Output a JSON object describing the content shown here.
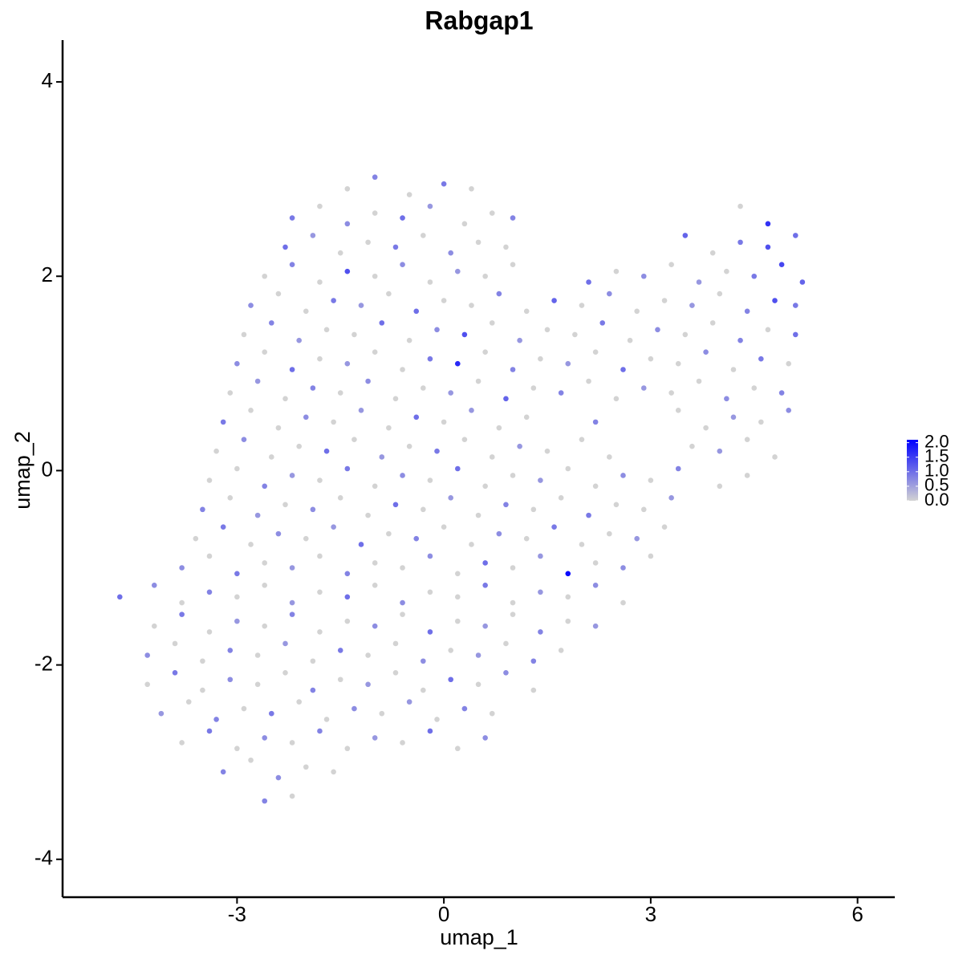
{
  "chart_data": {
    "type": "scatter",
    "title": "Rabgap1",
    "x_label": "umap_1",
    "y_label": "umap_2",
    "xlim": [
      -5.53,
      6.54
    ],
    "ylim": [
      -4.39,
      4.43
    ],
    "xticks": [
      -3,
      0,
      3,
      6
    ],
    "yticks": [
      -4,
      -2,
      0,
      2,
      4
    ],
    "color_low": "#d3d3d3",
    "color_high": "#0000ff",
    "color_lim": [
      0,
      2.1
    ],
    "color_ticks": [
      {
        "value": 2,
        "label": "2.0"
      },
      {
        "value": 1.5,
        "label": "1.5"
      },
      {
        "value": 1,
        "label": "1.0"
      },
      {
        "value": 0.5,
        "label": "0.5"
      },
      {
        "value": 0,
        "label": "0.0"
      }
    ],
    "x": [
      -1.4,
      -1.0,
      -0.5,
      0.0,
      0.4,
      -2.2,
      -1.8,
      -1.4,
      -1.0,
      -0.6,
      -0.2,
      0.3,
      0.7,
      1.0,
      4.3,
      4.7,
      -2.3,
      -1.9,
      -1.5,
      -1.1,
      -0.7,
      -0.3,
      0.1,
      0.5,
      0.9,
      3.5,
      3.9,
      4.3,
      4.7,
      5.1,
      -2.6,
      -2.2,
      -1.8,
      -1.4,
      -1.0,
      -0.6,
      -0.2,
      0.2,
      0.6,
      1.0,
      2.1,
      2.5,
      2.9,
      3.3,
      3.7,
      4.1,
      4.5,
      4.9,
      5.2,
      -2.8,
      -2.4,
      -2.0,
      -1.6,
      -1.2,
      -0.8,
      -0.4,
      0.0,
      0.4,
      0.8,
      1.2,
      1.6,
      2.0,
      2.4,
      2.8,
      3.2,
      3.6,
      4.0,
      4.4,
      4.8,
      5.1,
      -2.9,
      -2.5,
      -2.1,
      -1.7,
      -1.3,
      -0.9,
      -0.5,
      -0.1,
      0.3,
      0.7,
      1.1,
      1.5,
      1.9,
      2.3,
      2.7,
      3.1,
      3.5,
      3.9,
      4.3,
      4.7,
      5.1,
      -3.0,
      -2.6,
      -2.2,
      -1.8,
      -1.4,
      -1.0,
      -0.6,
      -0.2,
      0.2,
      0.6,
      1.0,
      1.4,
      1.8,
      2.2,
      2.6,
      3.0,
      3.4,
      3.8,
      4.2,
      4.6,
      5.0,
      -3.1,
      -2.7,
      -2.3,
      -1.9,
      -1.5,
      -1.1,
      -0.7,
      -0.3,
      0.1,
      0.5,
      0.9,
      1.3,
      1.7,
      2.1,
      2.5,
      2.9,
      3.3,
      3.7,
      4.1,
      4.5,
      4.9,
      -3.2,
      -2.8,
      -2.4,
      -2.0,
      -1.6,
      -1.2,
      -0.8,
      -0.4,
      0.0,
      0.4,
      0.8,
      1.2,
      2.2,
      3.4,
      3.8,
      4.2,
      4.6,
      5.0,
      -3.3,
      -2.9,
      -2.5,
      -2.1,
      -1.7,
      -1.3,
      -0.9,
      -0.5,
      -0.1,
      0.3,
      0.7,
      1.1,
      1.5,
      2.0,
      2.4,
      3.6,
      4.0,
      4.4,
      4.8,
      -3.4,
      -3.0,
      -2.6,
      -2.2,
      -1.8,
      -1.4,
      -1.0,
      -0.6,
      -0.2,
      0.2,
      0.6,
      1.0,
      1.4,
      1.8,
      2.2,
      2.6,
      3.0,
      3.4,
      4.0,
      4.4,
      -3.5,
      -3.1,
      -2.7,
      -2.3,
      -1.9,
      -1.5,
      -1.1,
      -0.7,
      -0.3,
      0.1,
      0.5,
      0.9,
      1.3,
      1.7,
      2.1,
      2.5,
      2.9,
      3.3,
      -3.6,
      -3.2,
      -2.8,
      -2.4,
      -2.0,
      -1.6,
      -1.2,
      -0.8,
      -0.4,
      0.0,
      0.4,
      0.8,
      1.2,
      1.6,
      2.0,
      2.4,
      2.8,
      3.2,
      -3.8,
      -3.4,
      -3.0,
      -2.6,
      -2.2,
      -1.8,
      -1.4,
      -1.0,
      -0.6,
      -0.2,
      0.2,
      0.6,
      1.0,
      1.4,
      1.8,
      2.2,
      2.6,
      3.0,
      -4.7,
      -4.2,
      -3.8,
      -3.4,
      -3.0,
      -2.6,
      -2.2,
      -1.8,
      -1.4,
      -1.0,
      -0.6,
      -0.2,
      0.2,
      0.6,
      1.0,
      1.4,
      1.8,
      2.2,
      2.6,
      -4.2,
      -3.8,
      -3.4,
      -3.0,
      -2.6,
      -2.2,
      -1.8,
      -1.4,
      -1.0,
      -0.6,
      -0.2,
      0.2,
      0.6,
      1.0,
      1.4,
      1.8,
      2.2,
      -4.3,
      -3.9,
      -3.5,
      -3.1,
      -2.7,
      -2.3,
      -1.9,
      -1.5,
      -1.1,
      -0.7,
      -0.3,
      0.1,
      0.5,
      0.9,
      1.3,
      1.7,
      -4.3,
      -3.9,
      -3.5,
      -3.1,
      -2.7,
      -2.3,
      -1.9,
      -1.5,
      -1.1,
      -0.7,
      -0.3,
      0.1,
      0.5,
      0.9,
      1.3,
      -4.1,
      -3.7,
      -3.3,
      -2.9,
      -2.5,
      -2.1,
      -1.7,
      -1.3,
      -0.9,
      -0.5,
      -0.1,
      0.3,
      0.7,
      -3.8,
      -3.4,
      -3.0,
      -2.6,
      -2.2,
      -1.8,
      -1.4,
      -1.0,
      -0.6,
      -0.2,
      0.2,
      0.6,
      -3.2,
      -2.8,
      -2.4,
      -2.0,
      -1.6,
      -2.6,
      -2.2
    ],
    "y": [
      2.9,
      3.02,
      2.84,
      2.95,
      2.9,
      2.6,
      2.72,
      2.54,
      2.65,
      2.6,
      2.72,
      2.54,
      2.65,
      2.6,
      2.72,
      2.54,
      2.3,
      2.42,
      2.24,
      2.35,
      2.3,
      2.42,
      2.24,
      2.35,
      2.3,
      2.42,
      2.24,
      2.35,
      2.3,
      2.42,
      2.0,
      2.12,
      1.94,
      2.05,
      2.0,
      2.12,
      1.94,
      2.05,
      2.0,
      2.12,
      1.94,
      2.05,
      2.0,
      2.12,
      1.94,
      2.05,
      2.0,
      2.12,
      1.94,
      1.7,
      1.82,
      1.64,
      1.75,
      1.7,
      1.82,
      1.64,
      1.75,
      1.7,
      1.82,
      1.64,
      1.75,
      1.7,
      1.82,
      1.64,
      1.75,
      1.7,
      1.82,
      1.64,
      1.75,
      1.7,
      1.4,
      1.52,
      1.34,
      1.45,
      1.4,
      1.52,
      1.34,
      1.45,
      1.4,
      1.52,
      1.34,
      1.45,
      1.4,
      1.52,
      1.34,
      1.45,
      1.4,
      1.52,
      1.34,
      1.45,
      1.4,
      1.1,
      1.22,
      1.04,
      1.15,
      1.1,
      1.22,
      1.04,
      1.15,
      1.1,
      1.22,
      1.04,
      1.15,
      1.1,
      1.22,
      1.04,
      1.15,
      1.1,
      1.22,
      1.04,
      1.15,
      1.1,
      0.8,
      0.92,
      0.74,
      0.85,
      0.8,
      0.92,
      0.74,
      0.85,
      0.8,
      0.92,
      0.74,
      0.85,
      0.8,
      0.92,
      0.74,
      0.85,
      0.8,
      0.92,
      0.74,
      0.85,
      0.8,
      0.5,
      0.62,
      0.44,
      0.55,
      0.5,
      0.62,
      0.44,
      0.55,
      0.5,
      0.62,
      0.44,
      0.55,
      0.5,
      0.62,
      0.44,
      0.55,
      0.5,
      0.62,
      0.2,
      0.32,
      0.14,
      0.25,
      0.2,
      0.32,
      0.14,
      0.25,
      0.2,
      0.32,
      0.14,
      0.25,
      0.2,
      0.32,
      0.14,
      0.25,
      0.2,
      0.32,
      0.14,
      -0.1,
      0.02,
      -0.16,
      -0.05,
      -0.1,
      0.02,
      -0.16,
      -0.05,
      -0.1,
      0.02,
      -0.16,
      -0.05,
      -0.1,
      0.02,
      -0.16,
      -0.05,
      -0.1,
      0.02,
      -0.16,
      -0.05,
      -0.4,
      -0.28,
      -0.46,
      -0.35,
      -0.4,
      -0.28,
      -0.46,
      -0.35,
      -0.4,
      -0.28,
      -0.46,
      -0.35,
      -0.4,
      -0.28,
      -0.46,
      -0.35,
      -0.4,
      -0.28,
      -0.7,
      -0.58,
      -0.76,
      -0.65,
      -0.7,
      -0.58,
      -0.76,
      -0.65,
      -0.7,
      -0.58,
      -0.76,
      -0.65,
      -0.7,
      -0.58,
      -0.76,
      -0.65,
      -0.7,
      -0.58,
      -1.0,
      -0.88,
      -1.06,
      -0.95,
      -1.0,
      -0.88,
      -1.06,
      -0.95,
      -1.0,
      -0.88,
      -1.06,
      -0.95,
      -1.0,
      -0.88,
      -1.06,
      -0.95,
      -1.0,
      -0.88,
      -1.3,
      -1.18,
      -1.36,
      -1.25,
      -1.3,
      -1.18,
      -1.36,
      -1.25,
      -1.3,
      -1.18,
      -1.36,
      -1.25,
      -1.3,
      -1.18,
      -1.36,
      -1.25,
      -1.3,
      -1.18,
      -1.36,
      -1.6,
      -1.48,
      -1.66,
      -1.55,
      -1.6,
      -1.48,
      -1.66,
      -1.55,
      -1.6,
      -1.48,
      -1.66,
      -1.55,
      -1.6,
      -1.48,
      -1.66,
      -1.55,
      -1.6,
      -1.9,
      -1.78,
      -1.96,
      -1.85,
      -1.9,
      -1.78,
      -1.96,
      -1.85,
      -1.9,
      -1.78,
      -1.96,
      -1.85,
      -1.9,
      -1.78,
      -1.96,
      -1.85,
      -2.2,
      -2.08,
      -2.26,
      -2.15,
      -2.2,
      -2.08,
      -2.26,
      -2.15,
      -2.2,
      -2.08,
      -2.26,
      -2.15,
      -2.2,
      -2.08,
      -2.26,
      -2.5,
      -2.38,
      -2.56,
      -2.45,
      -2.5,
      -2.38,
      -2.56,
      -2.45,
      -2.5,
      -2.38,
      -2.56,
      -2.45,
      -2.5,
      -2.8,
      -2.68,
      -2.86,
      -2.75,
      -2.8,
      -2.68,
      -2.86,
      -2.75,
      -2.8,
      -2.68,
      -2.86,
      -2.75,
      -3.1,
      -2.98,
      -3.16,
      -3.05,
      -3.1,
      -3.4,
      -3.35
    ],
    "values": [
      0,
      0.8,
      0,
      0.9,
      0,
      0.9,
      0,
      0.7,
      0,
      1.0,
      0.6,
      0,
      0,
      0.8,
      0,
      1.6,
      1.0,
      0.6,
      0,
      0,
      0.9,
      0,
      0.7,
      0,
      0,
      1.1,
      0,
      0.9,
      1.3,
      1.0,
      0,
      0.8,
      0,
      1.3,
      0,
      0.7,
      0,
      0.6,
      0,
      0,
      1.0,
      0,
      0.7,
      0,
      0.6,
      0,
      0.9,
      1.4,
      1.1,
      0.7,
      0,
      0,
      0.9,
      0.6,
      0,
      1.0,
      0,
      0,
      0.8,
      0,
      1.1,
      0,
      0.7,
      0,
      0,
      0.6,
      0,
      0.8,
      1.3,
      0.9,
      0,
      0.8,
      0.6,
      0,
      0,
      1.0,
      0,
      0.7,
      1.3,
      0,
      0.6,
      0,
      0,
      0.9,
      0,
      0.7,
      0,
      0,
      0.8,
      0,
      1.0,
      0.7,
      0,
      1.0,
      0,
      0.6,
      0,
      0,
      0.9,
      1.7,
      0,
      0.8,
      0,
      0.6,
      0,
      1.0,
      0,
      0,
      0.7,
      0,
      0.9,
      0,
      0,
      0.6,
      0,
      0.8,
      0,
      0.7,
      0,
      0,
      0.6,
      0,
      1.1,
      0,
      0.8,
      0,
      0,
      0.6,
      0,
      0,
      0.7,
      0,
      0.8,
      0.9,
      0,
      0,
      0.7,
      0,
      0.6,
      0,
      1.0,
      0,
      0.6,
      0,
      0,
      0.8,
      0,
      0,
      0.6,
      0,
      0.7,
      0,
      0.7,
      0,
      0,
      1.0,
      0,
      0.6,
      0,
      0.9,
      0,
      0,
      0.6,
      0,
      0,
      0,
      0,
      0.6,
      0,
      0,
      0,
      0,
      0.8,
      0.6,
      0,
      0.9,
      0,
      0.7,
      0,
      1.0,
      0,
      0,
      0.6,
      0,
      0,
      0.7,
      0,
      0.8,
      0,
      0,
      0.8,
      0,
      0.6,
      0,
      0.7,
      0,
      0,
      1.0,
      0,
      0.6,
      0,
      0.8,
      0,
      0,
      0.9,
      0,
      0,
      0.6,
      0,
      0.9,
      0,
      0.7,
      0,
      0.6,
      1.0,
      0,
      0.8,
      0,
      0,
      0.7,
      0,
      0.9,
      0,
      0,
      0.6,
      0,
      0.7,
      0,
      0.9,
      0,
      0.6,
      0,
      0.8,
      0,
      0,
      0.7,
      0,
      1.0,
      0,
      0.6,
      2.0,
      0,
      0.7,
      0,
      1.0,
      0.7,
      0,
      0.8,
      0,
      0,
      0.6,
      0,
      1.0,
      0,
      0.7,
      0,
      0,
      0.9,
      0,
      0.6,
      0,
      0.7,
      0,
      0,
      0.9,
      0,
      0.6,
      0,
      0.8,
      0,
      0,
      0.7,
      0,
      1.0,
      0,
      0.6,
      0,
      0.8,
      0,
      0.6,
      0.7,
      0,
      0,
      0.8,
      0,
      0.6,
      0,
      0.9,
      0,
      0,
      0.7,
      0,
      0.6,
      0,
      0.8,
      0,
      0,
      0.9,
      0,
      0.7,
      0,
      0,
      0.8,
      0,
      0.6,
      0,
      0,
      1.0,
      0,
      0.7,
      0,
      0.6,
      0,
      0.8,
      0,
      0.9,
      0,
      0,
      0.7,
      0,
      0.6,
      0,
      0.8,
      0,
      0,
      0.9,
      0,
      0.7,
      0,
      0.8,
      0,
      0.6,
      0,
      1.0,
      0,
      0.7,
      0.8,
      0,
      0.7,
      0,
      0,
      0.8,
      0
    ]
  }
}
